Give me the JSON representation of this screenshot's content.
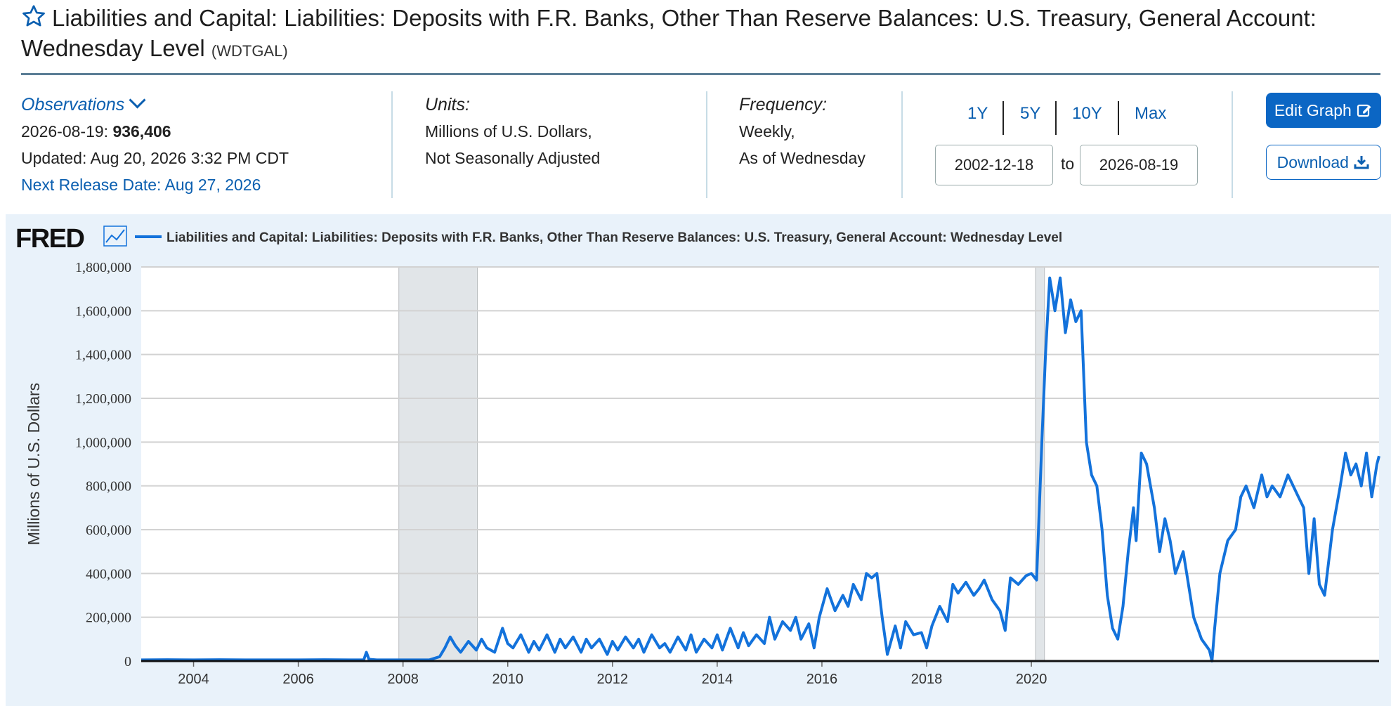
{
  "header": {
    "title": "Liabilities and Capital: Liabilities: Deposits with F.R. Banks, Other Than Reserve Balances: U.S. Treasury, General Account: Wednesday Level",
    "series_id": "(WDTGAL)"
  },
  "observations": {
    "label": "Observations",
    "date": "2026-08-19:",
    "value": "936,406",
    "updated": "Updated: Aug 20, 2026 3:32 PM CDT",
    "next_release": "Next Release Date: Aug 27, 2026"
  },
  "units": {
    "label": "Units:",
    "line1": "Millions of U.S. Dollars,",
    "line2": "Not Seasonally Adjusted"
  },
  "frequency": {
    "label": "Frequency:",
    "line1": "Weekly,",
    "line2": "As of Wednesday"
  },
  "range": {
    "buttons": [
      "1Y",
      "5Y",
      "10Y",
      "Max"
    ],
    "start": "2002-12-18",
    "to_label": "to",
    "end": "2026-08-19"
  },
  "actions": {
    "edit": "Edit Graph",
    "download": "Download"
  },
  "chart_data": {
    "type": "line",
    "brand": "FRED",
    "legend": "Liabilities and Capital: Liabilities: Deposits with F.R. Banks, Other Than Reserve Balances: U.S. Treasury, General Account: Wednesday Level",
    "ylabel": "Millions of U.S. Dollars",
    "ylim": [
      0,
      1800000
    ],
    "yticks": [
      0,
      200000,
      400000,
      600000,
      800000,
      1000000,
      1200000,
      1400000,
      1600000,
      1800000
    ],
    "ytick_labels": [
      "0",
      "200,000",
      "400,000",
      "600,000",
      "800,000",
      "1,000,000",
      "1,200,000",
      "1,400,000",
      "1,600,000",
      "1,800,000"
    ],
    "xlim": [
      2003.0,
      2026.64
    ],
    "xticks": [
      2004,
      2006,
      2008,
      2010,
      2012,
      2014,
      2016,
      2018,
      2020
    ],
    "xtick_labels": [
      "2004",
      "2006",
      "2008",
      "2010",
      "2012",
      "2014",
      "2016",
      "2018",
      "2020"
    ],
    "recessions": [
      [
        2007.92,
        2009.42
      ],
      [
        2020.08,
        2020.25
      ]
    ],
    "line_color": "#1372db",
    "grid": true,
    "series": [
      {
        "x": [
          2003.0,
          2003.5,
          2004.0,
          2004.5,
          2005.0,
          2005.5,
          2006.0,
          2006.5,
          2007.0,
          2007.25,
          2007.3,
          2007.35,
          2007.5,
          2008.0,
          2008.5,
          2008.7,
          2008.8,
          2008.9,
          2009.0,
          2009.1,
          2009.25,
          2009.4,
          2009.5,
          2009.6,
          2009.75,
          2009.9,
          2010.0,
          2010.1,
          2010.25,
          2010.4,
          2010.5,
          2010.6,
          2010.75,
          2010.9,
          2011.0,
          2011.1,
          2011.25,
          2011.4,
          2011.5,
          2011.6,
          2011.75,
          2011.9,
          2012.0,
          2012.1,
          2012.25,
          2012.4,
          2012.5,
          2012.6,
          2012.75,
          2012.9,
          2013.0,
          2013.1,
          2013.25,
          2013.4,
          2013.5,
          2013.6,
          2013.75,
          2013.9,
          2014.0,
          2014.1,
          2014.25,
          2014.4,
          2014.5,
          2014.6,
          2014.75,
          2014.9,
          2015.0,
          2015.1,
          2015.25,
          2015.4,
          2015.5,
          2015.6,
          2015.75,
          2015.85,
          2015.95,
          2016.1,
          2016.25,
          2016.4,
          2016.5,
          2016.6,
          2016.75,
          2016.85,
          2016.95,
          2017.05,
          2017.15,
          2017.25,
          2017.4,
          2017.5,
          2017.6,
          2017.75,
          2017.9,
          2018.0,
          2018.1,
          2018.25,
          2018.4,
          2018.5,
          2018.6,
          2018.75,
          2018.9,
          2019.0,
          2019.1,
          2019.25,
          2019.4,
          2019.5,
          2019.6,
          2019.75,
          2019.9,
          2020.0,
          2020.1,
          2020.2,
          2020.27,
          2020.35,
          2020.45,
          2020.55,
          2020.65,
          2020.75,
          2020.85,
          2020.95,
          2021.05,
          2021.15,
          2021.25,
          2021.35,
          2021.45,
          2021.55,
          2021.65,
          2021.75,
          2021.85,
          2021.95,
          2022.0,
          2022.1,
          2022.2,
          2022.35,
          2022.45,
          2022.55,
          2022.65,
          2022.75,
          2022.9,
          2023.0,
          2023.1,
          2023.25,
          2023.4,
          2023.45,
          2023.5,
          2023.6,
          2023.75,
          2023.9,
          2024.0,
          2024.1,
          2024.25,
          2024.4,
          2024.5,
          2024.6,
          2024.75,
          2024.9,
          2025.0,
          2025.1,
          2025.2,
          2025.3,
          2025.4,
          2025.5,
          2025.6,
          2025.75,
          2025.9,
          2026.0,
          2026.1,
          2026.2,
          2026.3,
          2026.4,
          2026.5,
          2026.6,
          2026.64
        ],
        "y": [
          5000,
          6000,
          5000,
          6000,
          5000,
          5000,
          5000,
          6000,
          5000,
          5000,
          40000,
          8000,
          5000,
          5000,
          5000,
          20000,
          60000,
          110000,
          70000,
          40000,
          90000,
          50000,
          100000,
          60000,
          40000,
          150000,
          80000,
          60000,
          120000,
          40000,
          90000,
          50000,
          120000,
          40000,
          100000,
          60000,
          110000,
          40000,
          100000,
          60000,
          100000,
          30000,
          90000,
          50000,
          110000,
          60000,
          100000,
          40000,
          120000,
          60000,
          80000,
          40000,
          110000,
          50000,
          120000,
          40000,
          100000,
          60000,
          120000,
          50000,
          150000,
          60000,
          130000,
          70000,
          120000,
          80000,
          200000,
          100000,
          180000,
          140000,
          200000,
          100000,
          170000,
          60000,
          200000,
          330000,
          230000,
          300000,
          250000,
          350000,
          280000,
          400000,
          380000,
          400000,
          200000,
          30000,
          160000,
          60000,
          180000,
          120000,
          130000,
          60000,
          160000,
          250000,
          180000,
          350000,
          310000,
          360000,
          300000,
          330000,
          370000,
          280000,
          230000,
          140000,
          380000,
          350000,
          390000,
          400000,
          370000,
          1000000,
          1400000,
          1750000,
          1600000,
          1750000,
          1500000,
          1650000,
          1550000,
          1600000,
          1000000,
          850000,
          800000,
          600000,
          300000,
          150000,
          100000,
          250000,
          500000,
          700000,
          550000,
          950000,
          900000,
          700000,
          500000,
          650000,
          550000,
          400000,
          500000,
          350000,
          200000,
          100000,
          50000,
          0,
          150000,
          400000,
          550000,
          600000,
          750000,
          800000,
          700000,
          850000,
          750000,
          800000,
          750000,
          850000,
          800000,
          750000,
          700000,
          400000,
          650000,
          350000,
          300000,
          600000,
          800000,
          950000,
          850000,
          900000,
          800000,
          950000,
          750000,
          900000,
          936406
        ]
      }
    ]
  }
}
